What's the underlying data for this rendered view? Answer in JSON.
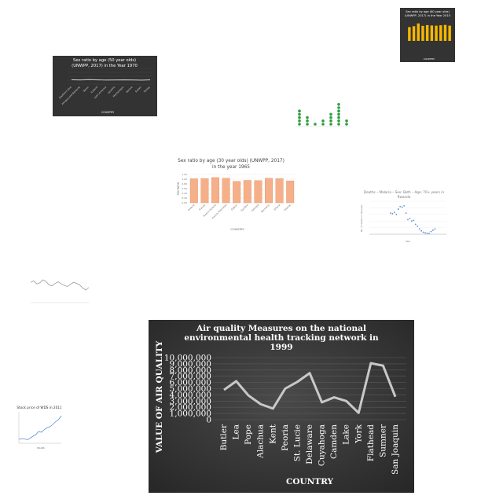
{
  "colors": {
    "dark_bg": "#3a3a3a",
    "line_light": "#c8c8c8",
    "gold": "#f5b800",
    "green": "#2e9e3e",
    "salmon": "#f5b08a",
    "blue": "#5b8fd6",
    "gray_line": "#9a9a9a"
  },
  "chart_data": [
    {
      "id": "main",
      "type": "line",
      "title_lines": [
        "Air quality Measures on the national",
        "environmental health tracking network in",
        "1999"
      ],
      "xlabel": "COUNTRY",
      "ylabel": "VALUE OF AIR QUALITY",
      "categories": [
        "Butler",
        "Lea",
        "Pope",
        "Alachua",
        "Kent",
        "Peoria",
        "St. Lucie",
        "Delaware",
        "Cuyahoga",
        "Camden",
        "Lake",
        "York",
        "Flathead",
        "Sumner",
        "San Joaquin"
      ],
      "values": [
        4800000,
        6200000,
        3900000,
        2500000,
        1800000,
        5000000,
        6100000,
        7500000,
        2800000,
        3600000,
        3000000,
        1100000,
        9100000,
        8700000,
        3700000
      ],
      "ylim": [
        0,
        10000000
      ],
      "yticks": [
        "0",
        "1,000,000",
        "2,000,000",
        "3,000,000",
        "4,000,000",
        "5,000,000",
        "6,000,000",
        "7,000,000",
        "8,000,000",
        "9,000,000",
        "10,000,000"
      ],
      "grid": true
    },
    {
      "id": "sr60",
      "type": "bar",
      "title_lines": [
        "Sex ratio by age (60 year olds)",
        "(UNWPP, 2017) in the Year 2010"
      ],
      "xlabel": "COUNTRY",
      "values": [
        0.75,
        0.8,
        0.95,
        0.82,
        0.86,
        0.84,
        0.83,
        0.85,
        0.87,
        0.83
      ],
      "ylim": [
        0,
        1.2
      ]
    },
    {
      "id": "sr50",
      "type": "line",
      "title_lines": [
        "Sex ratio by age (50 year olds)",
        "(UNWPP, 2017) in the Year 1970"
      ],
      "xlabel": "COUNTRY",
      "categories": [
        "Southern Asia",
        "Antigua and Barbuda",
        "Benin",
        "Iceland",
        "Latin America",
        "Lesotho",
        "Montenegro",
        "Samoa",
        "Sudan",
        "Turkey"
      ],
      "values": [
        0.97,
        0.95,
        0.98,
        0.96,
        0.94,
        0.95,
        0.96,
        0.95,
        0.93,
        0.96
      ],
      "ylim": [
        0,
        2
      ]
    },
    {
      "id": "malaria",
      "type": "scatter",
      "title_lines": [
        "Deaths – Malaria – Sex: Both – Age: 70+ years in",
        "Rwanda"
      ],
      "xlabel": "Year",
      "ylabel": "No. of deaths in Rwanda",
      "x": [
        1991,
        1992,
        1993,
        1994,
        1995,
        1996,
        1997,
        1998,
        1999,
        2000,
        2001,
        2002,
        2003,
        2004,
        2005,
        2006,
        2007,
        2008,
        2009,
        2010,
        2011,
        2012,
        2013,
        2014
      ],
      "y": [
        320,
        310,
        330,
        300,
        380,
        420,
        410,
        430,
        320,
        220,
        240,
        200,
        210,
        150,
        120,
        80,
        50,
        30,
        20,
        15,
        10,
        40,
        60,
        80
      ],
      "xlim": [
        1980,
        2020
      ],
      "ylim": [
        0,
        500
      ]
    },
    {
      "id": "sr30",
      "type": "bar",
      "title_lines": [
        "Sex ratio by age (30 year olds) (UNWPP, 2017)",
        "in the year 1965"
      ],
      "xlabel": "COUNTRY",
      "ylabel": "SEX RATIO",
      "categories": [
        "Finland",
        "France",
        "French Guiana",
        "French Polynesia",
        "Gabon",
        "Gambia",
        "Georgia",
        "Germany",
        "Ghana",
        "Greece"
      ],
      "values": [
        1.02,
        1.03,
        1.07,
        1.04,
        0.91,
        0.95,
        0.94,
        1.04,
        1.03,
        0.93
      ],
      "ylim": [
        0,
        1.2
      ],
      "yticks": [
        "0.00",
        "0.20",
        "0.40",
        "0.60",
        "0.80",
        "1.00",
        "1.20"
      ]
    },
    {
      "id": "dots",
      "type": "scatter",
      "values": [
        4,
        2,
        0,
        1,
        3,
        6,
        1
      ],
      "ylim": [
        0,
        7
      ]
    },
    {
      "id": "wave",
      "type": "line",
      "values": [
        55,
        58,
        52,
        54,
        60,
        57,
        50,
        48,
        53,
        56,
        52,
        49,
        47,
        51,
        55,
        53,
        50,
        44,
        40,
        45
      ],
      "ylim": [
        0,
        80
      ]
    },
    {
      "id": "stock",
      "type": "line",
      "title_lines": [
        "Stock price of WDS in 2011"
      ],
      "xlabel": "Month",
      "values": [
        10,
        12,
        11,
        9,
        13,
        18,
        22,
        30,
        28,
        35,
        40,
        42,
        48,
        55,
        60,
        70
      ],
      "ylim": [
        0,
        80
      ]
    }
  ]
}
